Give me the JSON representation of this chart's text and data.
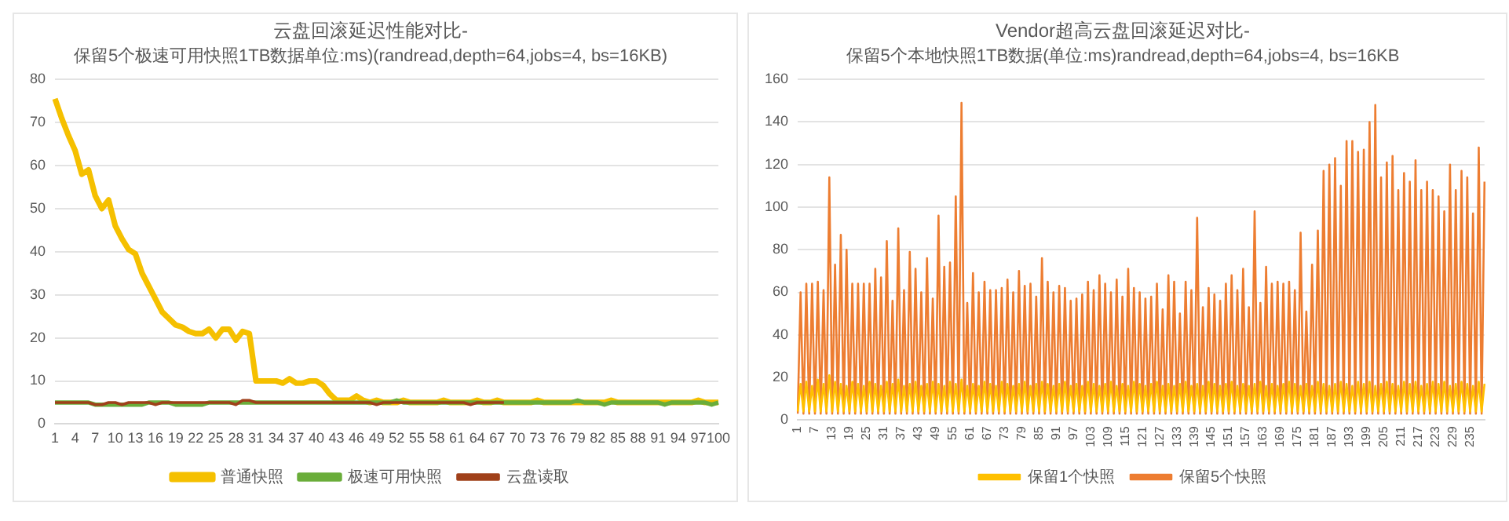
{
  "chart_data": [
    {
      "type": "line",
      "title": "云盘回滚延迟性能对比-",
      "subtitle": "保留5个极速可用快照1TB数据单位:ms)(randread,depth=64,jobs=4, bs=16KB)",
      "categories": [
        "1",
        null,
        null,
        "4",
        null,
        null,
        "7",
        null,
        null,
        "10",
        null,
        null,
        "13",
        null,
        null,
        "16",
        null,
        null,
        "19",
        null,
        null,
        "22",
        null,
        null,
        "25",
        null,
        null,
        "28",
        null,
        null,
        "31",
        null,
        null,
        "34",
        null,
        null,
        "37",
        null,
        null,
        "40",
        null,
        null,
        "43",
        null,
        null,
        "46",
        null,
        null,
        "49",
        null,
        null,
        "52",
        null,
        null,
        "55",
        null,
        null,
        "58",
        null,
        null,
        "61",
        null,
        null,
        "64",
        null,
        null,
        "67",
        null,
        null,
        "70",
        null,
        null,
        "73",
        null,
        null,
        "76",
        null,
        null,
        "79",
        null,
        null,
        "82",
        null,
        null,
        "85",
        null,
        null,
        "88",
        null,
        null,
        "91",
        null,
        null,
        "94",
        null,
        null,
        "97",
        null,
        null,
        "100"
      ],
      "series": [
        {
          "name": "普通快照",
          "color": "#f5c000",
          "values": [
            75.5,
            71,
            67,
            63.5,
            58,
            59,
            53,
            50,
            52,
            46,
            43,
            40.5,
            39.5,
            35,
            32,
            29,
            26,
            24.5,
            23,
            22.5,
            21.5,
            21,
            21,
            22,
            20,
            22,
            22,
            19.5,
            21.5,
            21,
            10,
            10,
            10,
            10,
            9.5,
            10.5,
            9.5,
            9.5,
            10,
            10,
            9,
            7,
            5.5,
            5.5,
            5.5,
            6.5,
            5.5,
            5,
            5.5,
            5,
            5,
            5,
            5.5,
            5,
            5,
            5,
            5,
            5,
            5.5,
            5,
            5,
            5,
            5,
            5.5,
            5,
            5,
            5.5,
            5,
            5,
            5,
            5,
            5,
            5.5,
            5,
            5,
            5,
            5,
            5,
            5,
            5,
            5,
            5,
            5,
            5.5,
            5,
            5,
            5,
            5,
            5,
            5,
            5,
            5,
            5,
            5,
            5,
            5,
            5.5,
            5,
            5,
            5
          ]
        },
        {
          "name": "极速可用快照",
          "color": "#6aad3a",
          "values": [
            5,
            5,
            5,
            5,
            5,
            5,
            4.5,
            4.5,
            4.5,
            4.5,
            4.5,
            4.5,
            4.5,
            4.5,
            5,
            5,
            5,
            5,
            4.5,
            4.5,
            4.5,
            4.5,
            4.5,
            5,
            5,
            5,
            5,
            5,
            5,
            5,
            5,
            5,
            5,
            5,
            5,
            5,
            5,
            5,
            5,
            5,
            5,
            5,
            5,
            5,
            5,
            5,
            5,
            5,
            5,
            5,
            5,
            5.5,
            5,
            5,
            5,
            5,
            5,
            5,
            5,
            5,
            5,
            5,
            5,
            5,
            5,
            5,
            5,
            5,
            5,
            5,
            5,
            5,
            5,
            5,
            5,
            5,
            5,
            5,
            5.5,
            5,
            5,
            5,
            4.5,
            5,
            5,
            5,
            5,
            5,
            5,
            5,
            5,
            4.5,
            5,
            5,
            5,
            5,
            5,
            5,
            4.5,
            5
          ]
        },
        {
          "name": "云盘读取",
          "color": "#a0401a",
          "values": [
            5,
            5,
            5,
            5,
            5,
            5,
            4.5,
            4.5,
            5,
            5,
            4.5,
            5,
            5,
            5,
            5,
            4.5,
            5,
            5,
            5,
            5,
            5,
            5,
            5,
            5,
            5,
            5,
            5,
            4.5,
            5.5,
            5.5,
            5,
            5,
            5,
            5,
            5,
            5,
            5,
            5,
            5,
            5,
            5,
            5,
            5,
            5,
            5,
            5,
            5,
            5,
            4.5,
            5,
            5,
            5,
            5,
            5,
            5,
            5,
            5,
            5,
            5,
            5,
            5,
            5,
            4.5,
            5,
            5,
            5,
            5,
            5,
            null,
            null,
            null,
            null,
            null,
            null,
            null,
            null,
            null,
            null,
            null,
            null,
            null,
            null,
            null,
            null,
            null,
            null,
            null,
            null,
            null,
            null,
            null,
            null,
            null,
            null,
            null,
            null,
            null,
            null,
            null,
            null
          ]
        }
      ],
      "ylim": [
        0,
        80
      ],
      "yticks": [
        0,
        10,
        20,
        30,
        40,
        50,
        60,
        70,
        80
      ],
      "grid": "y",
      "legend": "bottom",
      "marker": "none",
      "line_style": "solid"
    },
    {
      "type": "line",
      "title": "Vendor超高云盘回滚延迟对比-",
      "subtitle": "保留5个本地快照1TB数据(单位:ms)randread,depth=64,jobs=4, bs=16KB",
      "categories": [
        "1",
        null,
        null,
        null,
        null,
        null,
        "7",
        null,
        null,
        null,
        null,
        null,
        "13",
        null,
        null,
        null,
        null,
        null,
        "19",
        null,
        null,
        null,
        null,
        null,
        "25",
        null,
        null,
        null,
        null,
        null,
        "31",
        null,
        null,
        null,
        null,
        null,
        "37",
        null,
        null,
        null,
        null,
        null,
        "43",
        null,
        null,
        null,
        null,
        null,
        "49",
        null,
        null,
        null,
        null,
        null,
        "55",
        null,
        null,
        null,
        null,
        null,
        "61",
        null,
        null,
        null,
        null,
        null,
        "67",
        null,
        null,
        null,
        null,
        null,
        "73",
        null,
        null,
        null,
        null,
        null,
        "79",
        null,
        null,
        null,
        null,
        null,
        "85",
        null,
        null,
        null,
        null,
        null,
        "91",
        null,
        null,
        null,
        null,
        null,
        "97",
        null,
        null,
        null,
        null,
        null,
        "103",
        null,
        null,
        null,
        null,
        null,
        "109",
        null,
        null,
        null,
        null,
        null,
        "115",
        null,
        null,
        null,
        null,
        null,
        "121",
        null,
        null,
        null,
        null,
        null,
        "127",
        null,
        null,
        null,
        null,
        null,
        "133",
        null,
        null,
        null,
        null,
        null,
        "139",
        null,
        null,
        null,
        null,
        null,
        "145",
        null,
        null,
        null,
        null,
        null,
        "151",
        null,
        null,
        null,
        null,
        null,
        "157",
        null,
        null,
        null,
        null,
        null,
        "163",
        null,
        null,
        null,
        null,
        null,
        "169",
        null,
        null,
        null,
        null,
        null,
        "175",
        null,
        null,
        null,
        null,
        null,
        "181",
        null,
        null,
        null,
        null,
        null,
        "187",
        null,
        null,
        null,
        null,
        null,
        "193",
        null,
        null,
        null,
        null,
        null,
        "199",
        null,
        null,
        null,
        null,
        null,
        "205",
        null,
        null,
        null,
        null,
        null,
        "211",
        null,
        null,
        null,
        null,
        null,
        "217",
        null,
        null,
        null,
        null,
        null,
        "223",
        null,
        null,
        null,
        null,
        null,
        "229",
        null,
        null,
        null,
        null,
        null,
        "235",
        null,
        null,
        null,
        null,
        null
      ],
      "series": [
        {
          "name": "保留1个快照",
          "color": "#ffc000",
          "values": [
            4,
            17,
            4,
            18,
            4,
            16,
            4,
            19,
            4,
            17,
            4,
            21,
            4,
            18,
            4,
            17,
            4,
            16,
            4,
            18,
            4,
            17,
            4,
            16,
            4,
            18,
            4,
            17,
            4,
            16,
            4,
            18,
            4,
            17,
            4,
            19,
            4,
            16,
            4,
            17,
            4,
            18,
            4,
            16,
            4,
            17,
            4,
            18,
            4,
            17,
            4,
            16,
            4,
            18,
            4,
            17,
            4,
            19,
            4,
            16,
            4,
            17,
            4,
            16,
            4,
            18,
            4,
            17,
            4,
            16,
            4,
            18,
            4,
            17,
            4,
            16,
            4,
            17,
            4,
            18,
            4,
            16,
            4,
            17,
            4,
            18,
            4,
            17,
            4,
            16,
            4,
            17,
            4,
            18,
            4,
            16,
            4,
            17,
            4,
            16,
            4,
            18,
            4,
            17,
            4,
            16,
            4,
            17,
            4,
            18,
            4,
            16,
            4,
            17,
            4,
            16,
            4,
            18,
            4,
            17,
            4,
            16,
            4,
            17,
            4,
            18,
            4,
            16,
            4,
            17,
            4,
            16,
            4,
            17,
            4,
            18,
            4,
            16,
            4,
            17,
            4,
            16,
            4,
            18,
            4,
            17,
            4,
            16,
            4,
            17,
            4,
            18,
            4,
            16,
            4,
            17,
            4,
            16,
            4,
            17,
            4,
            18,
            4,
            16,
            4,
            17,
            4,
            16,
            4,
            17,
            4,
            18,
            4,
            17,
            4,
            16,
            4,
            17,
            4,
            16,
            4,
            18,
            4,
            17,
            4,
            16,
            4,
            17,
            4,
            18,
            4,
            17,
            4,
            16,
            4,
            18,
            4,
            17,
            4,
            18,
            4,
            16,
            4,
            17,
            4,
            18,
            4,
            17,
            4,
            16,
            4,
            18,
            4,
            17,
            4,
            18,
            4,
            16,
            4,
            17,
            4,
            18,
            4,
            17,
            4,
            18,
            4,
            16,
            4,
            17,
            4,
            18,
            4,
            17,
            4,
            16,
            4,
            18,
            4,
            17
          ]
        },
        {
          "name": "保留5个快照",
          "color": "#ed7d31",
          "values": [
            3,
            60,
            3,
            64,
            3,
            64,
            3,
            65,
            3,
            61,
            3,
            114,
            3,
            73,
            3,
            87,
            3,
            80,
            3,
            64,
            3,
            64,
            3,
            64,
            3,
            64,
            3,
            71,
            3,
            67,
            3,
            84,
            3,
            56,
            3,
            90,
            3,
            61,
            3,
            79,
            3,
            71,
            3,
            60,
            3,
            76,
            3,
            57,
            3,
            96,
            3,
            72,
            3,
            74,
            3,
            105,
            3,
            149,
            3,
            55,
            3,
            69,
            3,
            60,
            3,
            65,
            3,
            61,
            3,
            61,
            3,
            62,
            3,
            66,
            3,
            60,
            3,
            70,
            3,
            63,
            3,
            64,
            3,
            58,
            3,
            76,
            3,
            65,
            3,
            60,
            3,
            63,
            3,
            62,
            3,
            56,
            3,
            57,
            3,
            59,
            3,
            65,
            3,
            61,
            3,
            68,
            3,
            64,
            3,
            60,
            3,
            66,
            3,
            58,
            3,
            71,
            3,
            62,
            3,
            60,
            3,
            57,
            3,
            58,
            3,
            64,
            3,
            52,
            3,
            68,
            3,
            65,
            3,
            50,
            3,
            65,
            3,
            61,
            3,
            95,
            3,
            53,
            3,
            62,
            3,
            59,
            3,
            56,
            3,
            64,
            3,
            68,
            3,
            61,
            3,
            71,
            3,
            53,
            3,
            98,
            3,
            55,
            3,
            72,
            3,
            64,
            3,
            65,
            3,
            64,
            3,
            65,
            3,
            61,
            3,
            88,
            3,
            51,
            3,
            73,
            3,
            89,
            3,
            117,
            3,
            120,
            3,
            123,
            3,
            110,
            3,
            131,
            3,
            131,
            3,
            126,
            3,
            127,
            3,
            140,
            3,
            148,
            3,
            114,
            3,
            121,
            3,
            124,
            3,
            108,
            3,
            116,
            3,
            112,
            3,
            122,
            3,
            108,
            3,
            112,
            3,
            108,
            3,
            105,
            3,
            98,
            3,
            120,
            3,
            108,
            3,
            117,
            3,
            114,
            3,
            97,
            3,
            128,
            3,
            112
          ]
        }
      ],
      "ylim": [
        0,
        160
      ],
      "yticks": [
        0,
        20,
        40,
        60,
        80,
        100,
        120,
        140,
        160
      ],
      "grid": "y",
      "legend": "bottom",
      "marker": "none",
      "line_style": "solid"
    }
  ]
}
